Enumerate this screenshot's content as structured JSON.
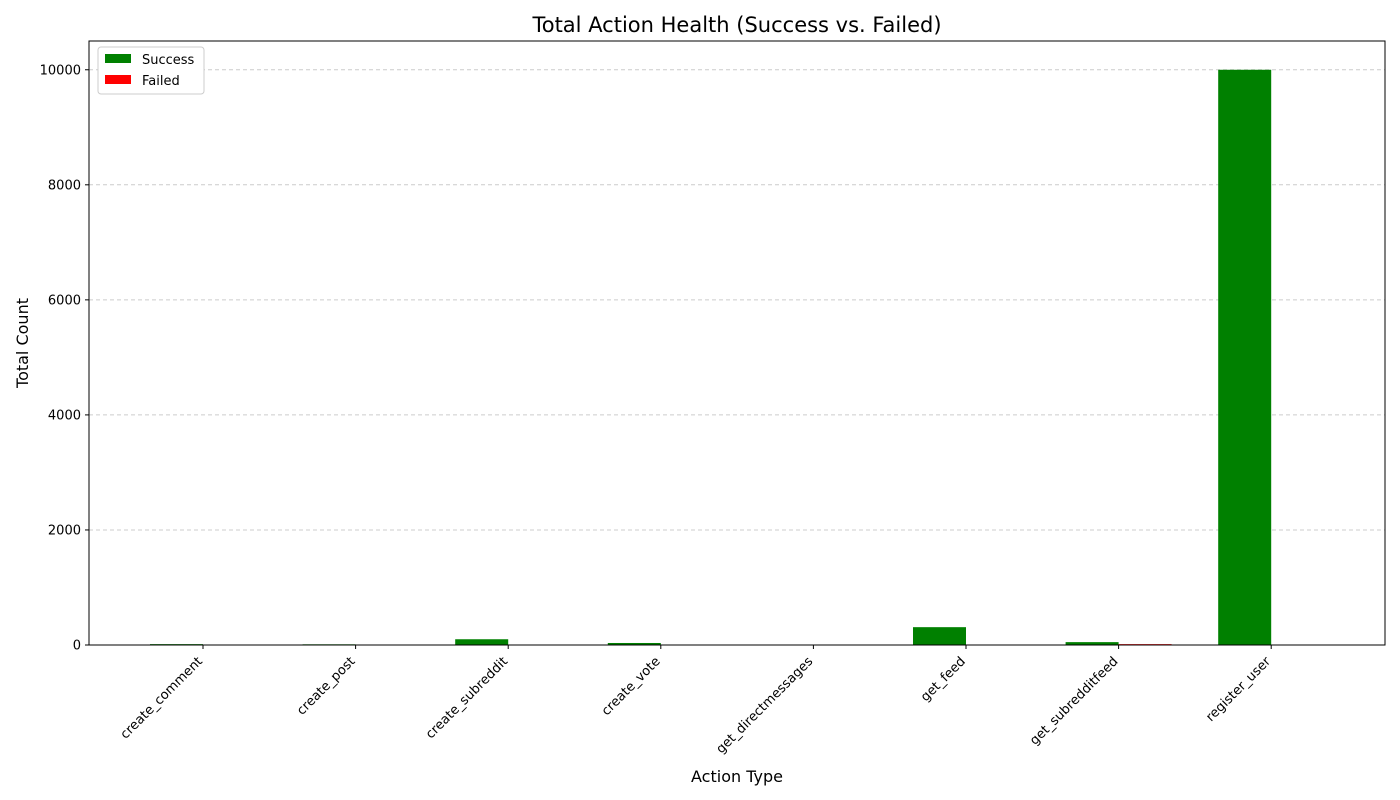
{
  "chart_data": {
    "type": "bar",
    "title": "Total Action Health (Success vs. Failed)",
    "xlabel": "Action Type",
    "ylabel": "Total Count",
    "categories": [
      "create_comment",
      "create_post",
      "create_subreddit",
      "create_vote",
      "get_directmessages",
      "get_feed",
      "get_subredditfeed",
      "register_user"
    ],
    "series": [
      {
        "name": "Success",
        "color": "#008000",
        "values": [
          15,
          12,
          100,
          35,
          2,
          310,
          50,
          10000
        ]
      },
      {
        "name": "Failed",
        "color": "#ff0000",
        "values": [
          2,
          2,
          2,
          2,
          2,
          2,
          15,
          0
        ]
      }
    ],
    "ylim": [
      0,
      10500
    ],
    "yticks": [
      0,
      2000,
      4000,
      6000,
      8000,
      10000
    ],
    "grid": "y-dashed",
    "legend_position": "top-left"
  }
}
